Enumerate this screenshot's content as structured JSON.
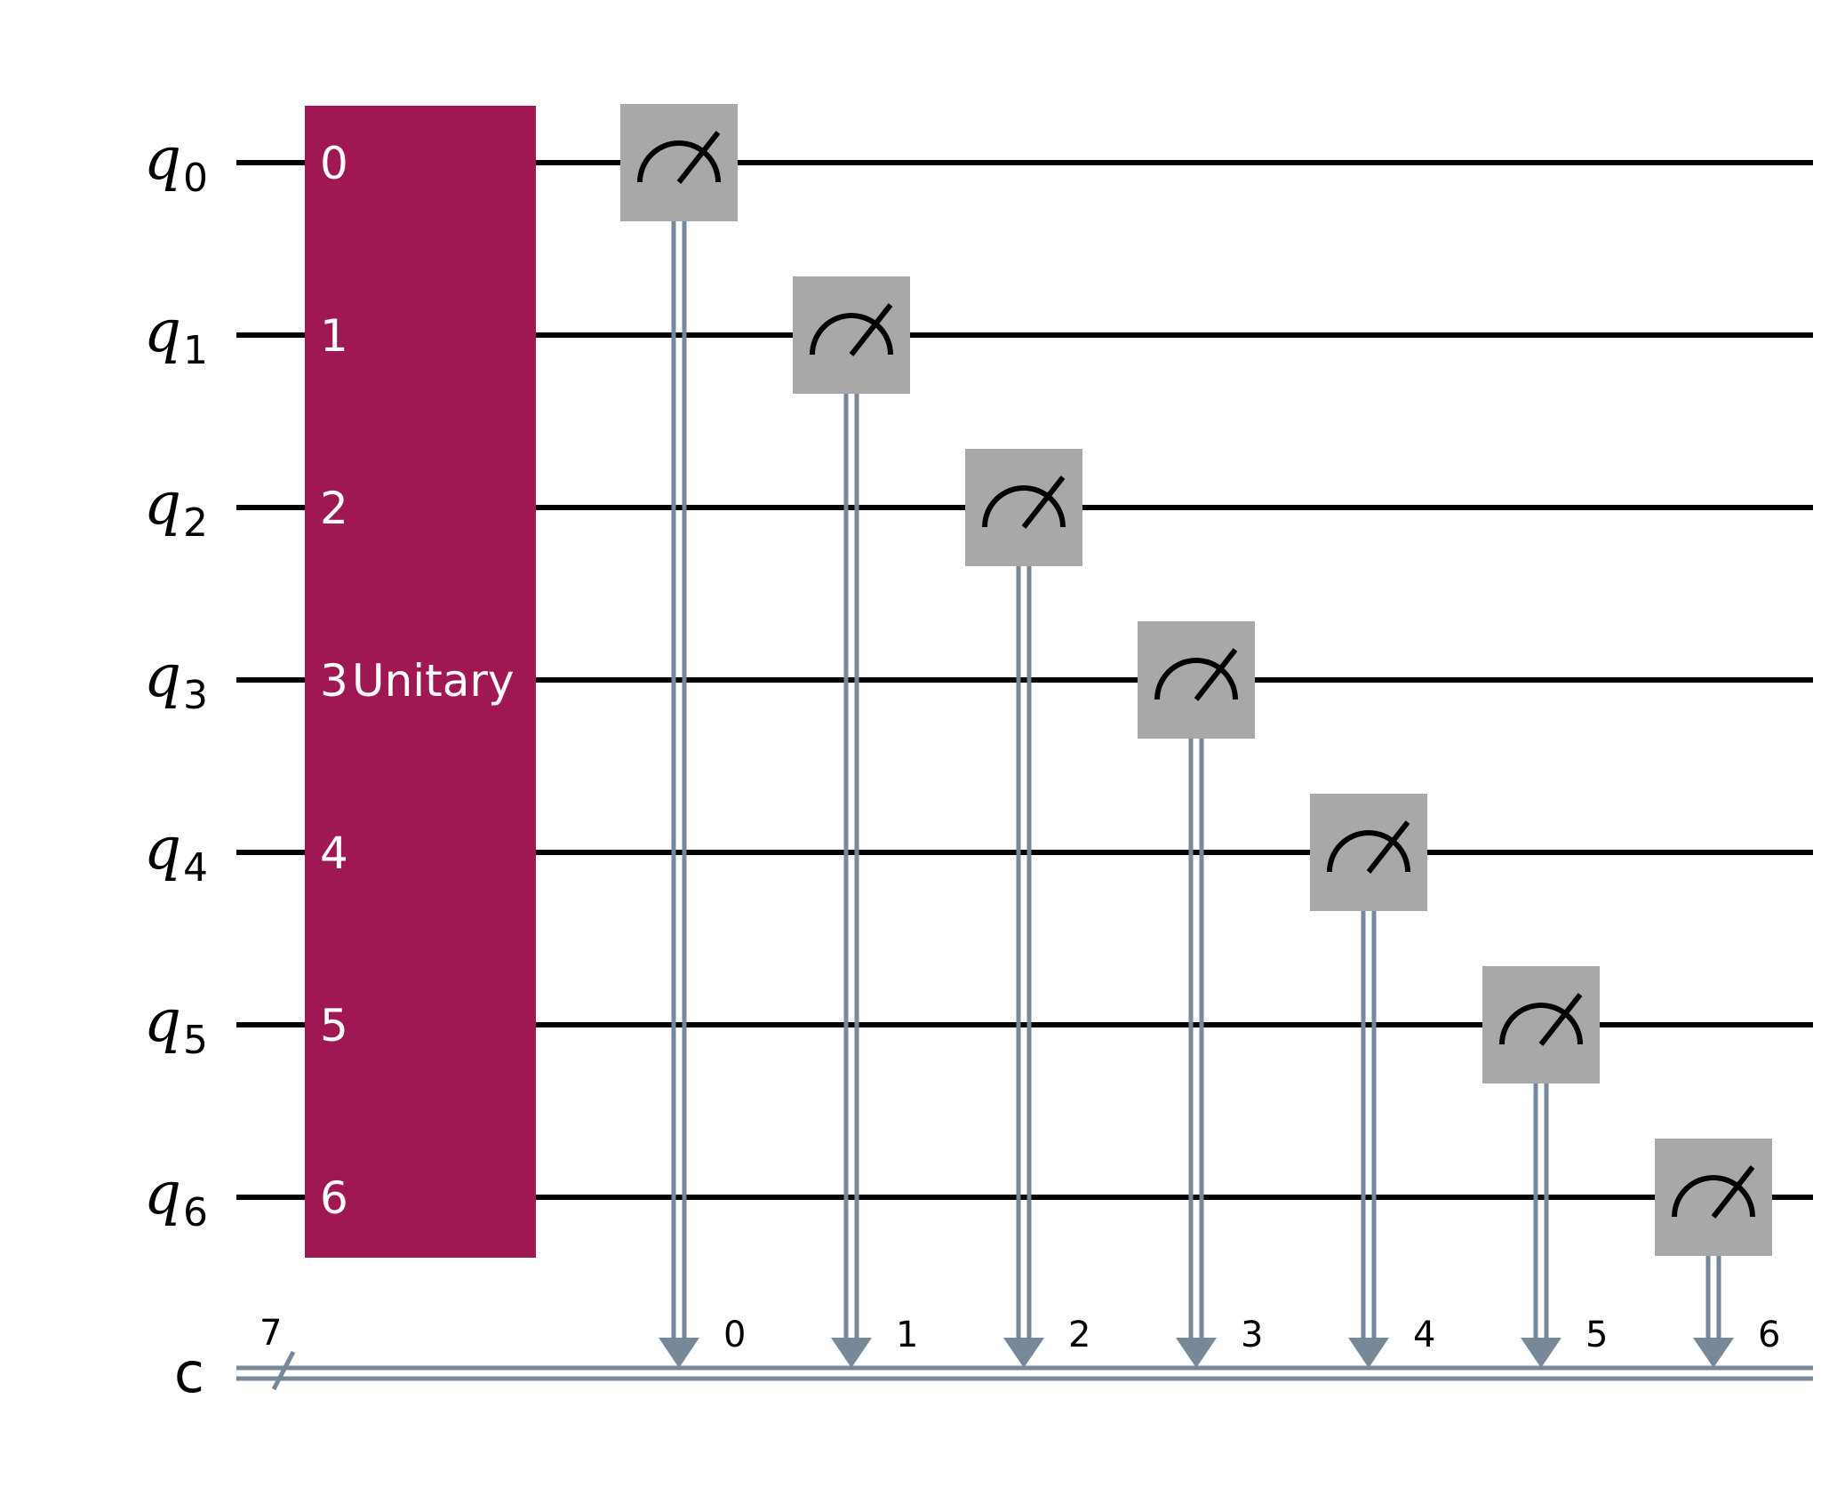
{
  "circuit": {
    "qubits": [
      {
        "name": "q",
        "index": "0"
      },
      {
        "name": "q",
        "index": "1"
      },
      {
        "name": "q",
        "index": "2"
      },
      {
        "name": "q",
        "index": "3"
      },
      {
        "name": "q",
        "index": "4"
      },
      {
        "name": "q",
        "index": "5"
      },
      {
        "name": "q",
        "index": "6"
      }
    ],
    "classical_register": {
      "name": "c",
      "size": "7"
    },
    "gate": {
      "label": "Unitary",
      "pin_labels": [
        "0",
        "1",
        "2",
        "3",
        "4",
        "5",
        "6"
      ],
      "color": "#9f1853"
    },
    "measurements": [
      {
        "qubit": 0,
        "bit": "0"
      },
      {
        "qubit": 1,
        "bit": "1"
      },
      {
        "qubit": 2,
        "bit": "2"
      },
      {
        "qubit": 3,
        "bit": "3"
      },
      {
        "qubit": 4,
        "bit": "4"
      },
      {
        "qubit": 5,
        "bit": "5"
      },
      {
        "qubit": 6,
        "bit": "6"
      }
    ],
    "colors": {
      "wire": "#000000",
      "classical_wire": "#778899",
      "measure_box": "#a8a8a8",
      "gate_text": "#ffffff"
    }
  }
}
